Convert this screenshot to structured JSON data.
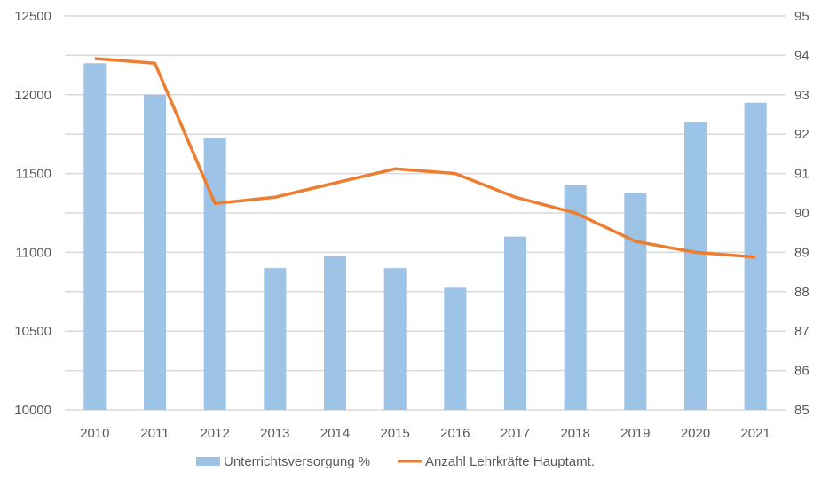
{
  "chart_data": {
    "type": "bar+line",
    "title": "",
    "categories": [
      "2010",
      "2011",
      "2012",
      "2013",
      "2014",
      "2015",
      "2016",
      "2017",
      "2018",
      "2019",
      "2020",
      "2021"
    ],
    "series": [
      {
        "name": "Unterrichtsversorgung %",
        "type": "bar",
        "axis": "right",
        "color": "#9DC3E6",
        "values": [
          93.8,
          93.0,
          91.9,
          88.6,
          88.9,
          88.6,
          88.1,
          89.4,
          90.7,
          90.5,
          92.3,
          92.8
        ]
      },
      {
        "name": "Anzahl Lehrkräfte Hauptamt.",
        "type": "line",
        "axis": "left",
        "color": "#ED7D31",
        "values": [
          12230,
          12200,
          11310,
          11350,
          11440,
          11530,
          11500,
          11350,
          11250,
          11070,
          11000,
          10970
        ]
      }
    ],
    "y_left": {
      "label": "",
      "lim": [
        10000,
        12500
      ],
      "ticks": [
        "10000",
        "10500",
        "11000",
        "11500",
        "12000",
        "12500"
      ],
      "tick_values": [
        10000,
        10500,
        11000,
        11500,
        12000,
        12500
      ]
    },
    "y_right": {
      "label": "",
      "lim": [
        85,
        95
      ],
      "ticks": [
        "85",
        "86",
        "87",
        "88",
        "89",
        "90",
        "91",
        "92",
        "93",
        "94",
        "95"
      ],
      "tick_values": [
        85,
        86,
        87,
        88,
        89,
        90,
        91,
        92,
        93,
        94,
        95
      ]
    },
    "grid": true,
    "grid_color": "#D9D9D9",
    "legend_position": "bottom"
  }
}
